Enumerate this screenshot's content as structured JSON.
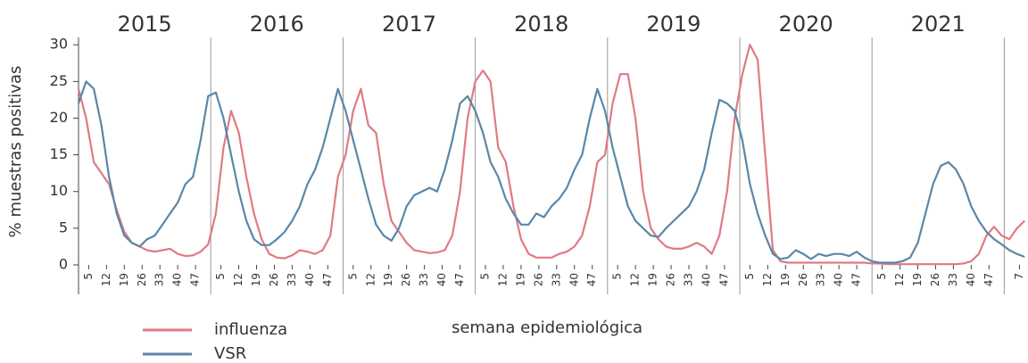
{
  "chart_data": {
    "type": "line",
    "y_label": "% muestras positivas",
    "x_label": "semana epidemiológica",
    "year_labels": [
      "2015",
      "2016",
      "2017",
      "2018",
      "2019",
      "2020",
      "2021"
    ],
    "x": [
      1,
      4,
      7,
      10,
      13,
      16,
      19,
      22,
      25,
      28,
      31,
      34,
      37,
      40,
      43,
      46,
      49,
      52,
      55,
      58,
      61,
      64,
      67,
      70,
      73,
      76,
      79,
      82,
      85,
      88,
      91,
      94,
      97,
      100,
      103,
      106,
      109,
      112,
      115,
      118,
      121,
      124,
      127,
      130,
      133,
      136,
      139,
      142,
      145,
      148,
      151,
      154,
      157,
      160,
      163,
      166,
      169,
      172,
      175,
      178,
      181,
      184,
      187,
      190,
      193,
      196,
      199,
      202,
      205,
      208,
      211,
      214,
      217,
      220,
      223,
      226,
      229,
      232,
      235,
      238,
      241,
      244,
      247,
      250,
      253,
      256,
      259,
      262,
      265,
      268,
      271,
      274,
      277,
      280,
      283,
      286,
      289,
      292,
      295,
      298,
      301,
      304,
      307,
      310,
      313,
      316,
      319,
      322,
      325,
      328,
      331,
      334,
      337,
      340,
      343,
      346,
      349,
      352,
      355,
      358,
      361,
      364,
      367,
      370,
      373
    ],
    "series": [
      {
        "name": "influenza",
        "color": "#e07a84",
        "values": [
          24,
          20,
          14,
          12.5,
          11,
          7.5,
          4.5,
          3,
          2.5,
          2,
          1.8,
          2,
          2.2,
          1.5,
          1.2,
          1.3,
          1.8,
          2.8,
          7,
          16,
          21,
          18,
          12,
          7,
          3.5,
          1.5,
          1,
          0.9,
          1.3,
          2,
          1.8,
          1.5,
          2,
          4,
          12,
          15,
          21,
          24,
          19,
          18,
          11,
          6,
          4.5,
          3,
          2,
          1.8,
          1.6,
          1.7,
          2,
          4,
          10,
          20,
          25,
          26.5,
          25,
          16,
          14,
          8,
          3.5,
          1.5,
          1,
          1,
          1,
          1.5,
          1.8,
          2.5,
          4,
          8,
          14,
          15,
          22,
          26,
          26,
          20,
          10,
          5,
          3.5,
          2.5,
          2.2,
          2.2,
          2.5,
          3,
          2.5,
          1.5,
          4,
          10,
          20,
          26,
          30,
          28,
          15,
          2,
          0.5,
          0.3,
          0.3,
          0.3,
          0.3,
          0.3,
          0.3,
          0.3,
          0.3,
          0.3,
          0.3,
          0.3,
          0.2,
          0.2,
          0.1,
          0.1,
          0.1,
          0.1,
          0.1,
          0.1,
          0.1,
          0.1,
          0.1,
          0.1,
          0.2,
          0.5,
          1.5,
          4,
          5.2,
          4,
          3.5,
          5,
          6
        ]
      },
      {
        "name": "VSR",
        "color": "#5a87a8",
        "values": [
          22,
          25,
          24,
          19,
          12,
          7,
          4,
          3,
          2.5,
          3.5,
          4,
          5.5,
          7,
          8.5,
          11,
          12,
          17,
          23,
          23.5,
          20,
          15,
          10,
          6,
          3.5,
          2.7,
          2.7,
          3.5,
          4.5,
          6,
          8,
          11,
          13,
          16,
          20,
          24,
          21,
          17,
          13,
          9,
          5.5,
          4,
          3.3,
          5,
          8,
          9.5,
          10,
          10.5,
          10,
          13,
          17,
          22,
          23,
          21,
          18,
          14,
          12,
          9,
          7,
          5.5,
          5.5,
          7,
          6.5,
          8,
          9,
          10.5,
          13,
          15,
          20,
          24,
          21,
          16,
          12,
          8,
          6,
          5,
          4,
          3.8,
          5,
          6,
          7,
          8,
          10,
          13,
          18,
          22.5,
          22,
          21,
          17,
          11,
          7,
          4,
          1.5,
          0.8,
          1,
          2,
          1.5,
          0.8,
          1.5,
          1.2,
          1.5,
          1.5,
          1.2,
          1.8,
          1,
          0.5,
          0.3,
          0.3,
          0.3,
          0.5,
          1,
          3,
          7,
          11,
          13.5,
          14,
          13,
          11,
          8,
          6,
          4.5,
          3.5,
          2.8,
          2,
          1.5,
          1.1
        ]
      }
    ],
    "xlim": [
      1,
      374
    ],
    "ylim": [
      0,
      31
    ],
    "yticks": [
      0,
      5,
      10,
      15,
      20,
      25,
      30
    ],
    "xticks": [
      5,
      12,
      19,
      26,
      33,
      40,
      47,
      {
        "value": 57,
        "label": "5"
      },
      {
        "value": 64,
        "label": "12"
      },
      {
        "value": 71,
        "label": "19"
      },
      {
        "value": 78,
        "label": "26"
      },
      {
        "value": 85,
        "label": "33"
      },
      {
        "value": 92,
        "label": "40"
      },
      {
        "value": 99,
        "label": "47"
      },
      {
        "value": 109,
        "label": "5"
      },
      {
        "value": 116,
        "label": "12"
      },
      {
        "value": 123,
        "label": "19"
      },
      {
        "value": 130,
        "label": "26"
      },
      {
        "value": 137,
        "label": "33"
      },
      {
        "value": 144,
        "label": "40"
      },
      {
        "value": 151,
        "label": "47"
      },
      {
        "value": 161,
        "label": "5"
      },
      {
        "value": 168,
        "label": "12"
      },
      {
        "value": 175,
        "label": "19"
      },
      {
        "value": 182,
        "label": "26"
      },
      {
        "value": 189,
        "label": "33"
      },
      {
        "value": 196,
        "label": "40"
      },
      {
        "value": 203,
        "label": "47"
      },
      {
        "value": 213,
        "label": "5"
      },
      {
        "value": 220,
        "label": "12"
      },
      {
        "value": 227,
        "label": "19"
      },
      {
        "value": 234,
        "label": "26"
      },
      {
        "value": 241,
        "label": "33"
      },
      {
        "value": 248,
        "label": "40"
      },
      {
        "value": 255,
        "label": "47"
      },
      {
        "value": 265,
        "label": "5"
      },
      {
        "value": 272,
        "label": "12"
      },
      {
        "value": 279,
        "label": "19"
      },
      {
        "value": 286,
        "label": "26"
      },
      {
        "value": 293,
        "label": "33"
      },
      {
        "value": 300,
        "label": "40"
      },
      {
        "value": 307,
        "label": "47"
      },
      {
        "value": 317,
        "label": "5"
      },
      {
        "value": 324,
        "label": "12"
      },
      {
        "value": 331,
        "label": "19"
      },
      {
        "value": 338,
        "label": "26"
      },
      {
        "value": 345,
        "label": "33"
      },
      {
        "value": 352,
        "label": "40"
      },
      {
        "value": 359,
        "label": "47"
      },
      {
        "value": 371,
        "label": "7"
      }
    ],
    "grid": false,
    "legend": "lower left"
  }
}
